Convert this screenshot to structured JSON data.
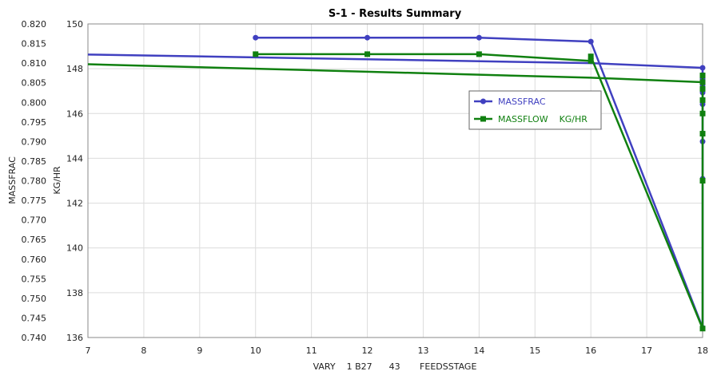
{
  "chart_data": {
    "type": "line",
    "title": "S-1 - Results Summary",
    "xlabel": "VARY    1 B27      43       FEEDSSTAGE",
    "ylabel_left": "MASSFRAC",
    "ylabel_right": "KG/HR",
    "xlim": [
      7,
      18
    ],
    "x_ticks": [
      "7",
      "8",
      "9",
      "10",
      "11",
      "12",
      "13",
      "14",
      "15",
      "16",
      "17",
      "18"
    ],
    "ylim_left": [
      0.74,
      0.82
    ],
    "y_ticks_left": [
      "0.740",
      "0.745",
      "0.750",
      "0.755",
      "0.760",
      "0.765",
      "0.770",
      "0.775",
      "0.780",
      "0.785",
      "0.790",
      "0.795",
      "0.800",
      "0.805",
      "0.810",
      "0.815",
      "0.820"
    ],
    "ylim_right": [
      136,
      150
    ],
    "y_ticks_right": [
      "136",
      "138",
      "140",
      "142",
      "144",
      "146",
      "148",
      "150"
    ],
    "grid": true,
    "legend_position": "right",
    "series": [
      {
        "name": "MASSFRAC",
        "axis": "left",
        "color": "#4040c0",
        "marker": "circle",
        "segments": [
          {
            "x": [
              10,
              12,
              14,
              16,
              18,
              18,
              18,
              18,
              18,
              18,
              18,
              18,
              18
            ],
            "y": [
              0.8165,
              0.8165,
              0.8165,
              0.8155,
              0.7425,
              0.7805,
              0.79,
              0.7995,
              0.8025,
              0.8045,
              0.806,
              0.807,
              0.8088
            ]
          },
          {
            "x": [
              7,
              16,
              18
            ],
            "y": [
              0.8122,
              0.81,
              0.8088
            ]
          }
        ]
      },
      {
        "name": "MASSFLOW    KG/HR",
        "axis": "right",
        "color": "#108010",
        "marker": "square",
        "segments": [
          {
            "x": [
              10,
              12,
              14,
              16,
              16,
              18,
              18,
              18,
              18,
              18,
              18,
              18,
              18
            ],
            "y": [
              148.65,
              148.65,
              148.65,
              148.35,
              148.55,
              136.4,
              143.0,
              145.1,
              146.0,
              146.6,
              147.1,
              147.4,
              147.7
            ]
          },
          {
            "x": [
              7,
              16,
              18
            ],
            "y": [
              148.2,
              147.6,
              147.4
            ]
          }
        ]
      }
    ]
  }
}
